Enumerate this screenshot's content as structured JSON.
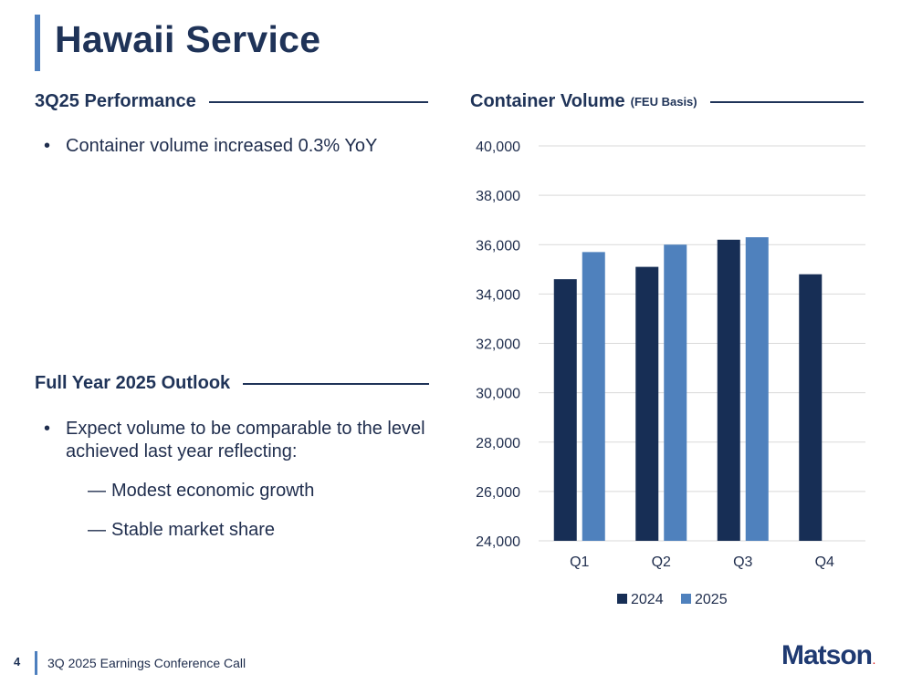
{
  "title": "Hawaii Service",
  "perf": {
    "heading": "3Q25 Performance",
    "bullets": [
      "Container volume increased 0.3% YoY"
    ]
  },
  "outlook": {
    "heading": "Full Year 2025 Outlook",
    "bullet": "Expect volume to be comparable to the level achieved last year reflecting:",
    "subs": [
      "Modest economic growth",
      "Stable market share"
    ]
  },
  "chart_heading": {
    "main": "Container Volume",
    "sub": "(FEU Basis)"
  },
  "chart_data": {
    "type": "bar",
    "title": "Container Volume (FEU Basis)",
    "categories": [
      "Q1",
      "Q2",
      "Q3",
      "Q4"
    ],
    "series": [
      {
        "name": "2024",
        "values": [
          34600,
          35100,
          36200,
          34800
        ],
        "color": "#172e55"
      },
      {
        "name": "2025",
        "values": [
          35700,
          36000,
          36300,
          null
        ],
        "color": "#4f81bd"
      }
    ],
    "ylim": [
      24000,
      40000
    ],
    "yticks": [
      24000,
      26000,
      28000,
      30000,
      32000,
      34000,
      36000,
      38000,
      40000
    ],
    "ytick_labels": [
      "24,000",
      "26,000",
      "28,000",
      "30,000",
      "32,000",
      "34,000",
      "36,000",
      "38,000",
      "40,000"
    ],
    "grid": true,
    "legend": "bottom"
  },
  "footer": {
    "page": "4",
    "text": "3Q 2025 Earnings Conference Call",
    "logo": "Matson",
    "logo_dot": "."
  }
}
